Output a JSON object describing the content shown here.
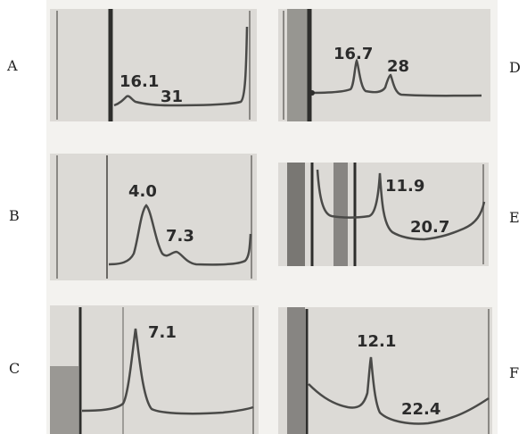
{
  "colors": {
    "plate": "#dcdad6",
    "frame": "#8a8884",
    "trace": "#4a4a48",
    "gap": "#f3f2ef"
  },
  "chart_data": [
    {
      "panel": "A",
      "type": "line",
      "peaks": [
        {
          "label": "16.1"
        },
        {
          "label": "31"
        }
      ]
    },
    {
      "panel": "D",
      "type": "line",
      "peaks": [
        {
          "label": "16.7"
        },
        {
          "label": "28"
        }
      ]
    },
    {
      "panel": "B",
      "type": "line",
      "peaks": [
        {
          "label": "4.0"
        },
        {
          "label": "7.3"
        }
      ]
    },
    {
      "panel": "E",
      "type": "line",
      "peaks": [
        {
          "label": "11.9"
        },
        {
          "label": "20.7"
        }
      ]
    },
    {
      "panel": "C",
      "type": "line",
      "peaks": [
        {
          "label": "7.1"
        }
      ]
    },
    {
      "panel": "F",
      "type": "line",
      "peaks": [
        {
          "label": "12.1"
        },
        {
          "label": "22.4"
        }
      ]
    }
  ]
}
